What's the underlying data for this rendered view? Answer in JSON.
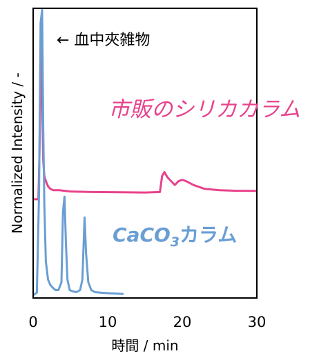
{
  "chart_data": {
    "type": "line",
    "title": "",
    "xlabel": "時間 / min",
    "ylabel": "Normalized Intensity / -",
    "xlim": [
      0,
      30
    ],
    "x_ticks": [
      "0",
      "10",
      "20",
      "30"
    ],
    "y_ticks": false,
    "grid": false,
    "legend": "none",
    "annotations": [
      {
        "text": "← 血中夾雑物"
      }
    ],
    "series": [
      {
        "name": "市販のシリカカラム",
        "color": "#E8428C",
        "x": [
          0,
          0.7,
          0.85,
          1.0,
          1.1,
          1.2,
          1.35,
          1.5,
          1.7,
          2.0,
          2.3,
          2.7,
          3.5,
          5,
          8,
          12,
          15,
          17,
          17.3,
          17.6,
          18.0,
          18.5,
          19.0,
          19.5,
          20.0,
          20.5,
          21.5,
          23,
          25,
          27,
          30
        ],
        "values": [
          0.37,
          0.37,
          0.55,
          0.88,
          1.02,
          0.75,
          0.52,
          0.46,
          0.44,
          0.42,
          0.41,
          0.405,
          0.405,
          0.4,
          0.398,
          0.397,
          0.396,
          0.398,
          0.46,
          0.475,
          0.455,
          0.44,
          0.425,
          0.44,
          0.445,
          0.44,
          0.425,
          0.41,
          0.405,
          0.403,
          0.402
        ]
      },
      {
        "name": "",
        "color": "#6A9ED3",
        "x": [
          0,
          0.5,
          0.8,
          1.0,
          1.2,
          1.35,
          1.5,
          1.7,
          2.0,
          2.3,
          2.6,
          3.0,
          3.4,
          3.8,
          4.0,
          4.2,
          4.4,
          4.6,
          4.9,
          5.3,
          5.8,
          6.3,
          6.6,
          6.9,
          7.1,
          7.4,
          7.8,
          8.3,
          9,
          10,
          12
        ],
        "values": [
          0.0,
          0.01,
          0.4,
          1.05,
          1.1,
          0.65,
          0.35,
          0.13,
          0.06,
          0.04,
          0.03,
          0.02,
          0.02,
          0.05,
          0.32,
          0.38,
          0.2,
          0.06,
          0.02,
          0.015,
          0.012,
          0.02,
          0.06,
          0.3,
          0.16,
          0.05,
          0.02,
          0.012,
          0.01,
          0.008,
          0.005
        ]
      }
    ]
  },
  "labels": {
    "silica_column": "市販のシリカカラム",
    "caco3_prefix": "CaCO",
    "caco3_subscript": "3",
    "caco3_suffix": "カラム"
  }
}
